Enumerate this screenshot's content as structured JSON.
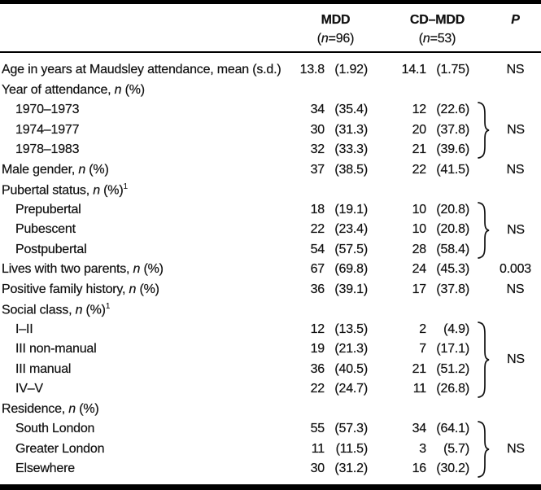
{
  "header": {
    "col_mdd": {
      "title": "MDD",
      "n": "(n=96)"
    },
    "col_cd": {
      "title": "CD–MDD",
      "n": "(n=53)"
    },
    "col_p": "P"
  },
  "table": {
    "rows": [
      {
        "label": "Age in years at Maudsley attendance, mean (s.d.)",
        "mdd_n": "13.8",
        "mdd_pct": "(1.92)",
        "cd_n": "14.1",
        "cd_pct": "(1.75)",
        "p": "NS"
      },
      {
        "label": "Year of attendance, n (%)",
        "italic_n": true,
        "section": true
      },
      {
        "label": "1970–1973",
        "indent": true,
        "mdd_n": "34",
        "mdd_pct": "(35.4)",
        "cd_n": "12",
        "cd_pct": "(22.6)"
      },
      {
        "label": "1974–1977",
        "indent": true,
        "mdd_n": "30",
        "mdd_pct": "(31.3)",
        "cd_n": "20",
        "cd_pct": "(37.8)"
      },
      {
        "label": "1978–1983",
        "indent": true,
        "mdd_n": "32",
        "mdd_pct": "(33.3)",
        "cd_n": "21",
        "cd_pct": "(39.6)"
      },
      {
        "label": "Male gender, n (%)",
        "italic_n": true,
        "mdd_n": "37",
        "mdd_pct": "(38.5)",
        "cd_n": "22",
        "cd_pct": "(41.5)",
        "p": "NS"
      },
      {
        "label": "Pubertal status, n (%)",
        "italic_n": true,
        "sup": "1",
        "section": true
      },
      {
        "label": "Prepubertal",
        "indent": true,
        "mdd_n": "18",
        "mdd_pct": "(19.1)",
        "cd_n": "10",
        "cd_pct": "(20.8)"
      },
      {
        "label": "Pubescent",
        "indent": true,
        "mdd_n": "22",
        "mdd_pct": "(23.4)",
        "cd_n": "10",
        "cd_pct": "(20.8)"
      },
      {
        "label": "Postpubertal",
        "indent": true,
        "mdd_n": "54",
        "mdd_pct": "(57.5)",
        "cd_n": "28",
        "cd_pct": "(58.4)"
      },
      {
        "label": "Lives with two parents, n (%)",
        "italic_n": true,
        "mdd_n": "67",
        "mdd_pct": "(69.8)",
        "cd_n": "24",
        "cd_pct": "(45.3)",
        "p": "0.003"
      },
      {
        "label": "Positive family history, n (%)",
        "italic_n": true,
        "mdd_n": "36",
        "mdd_pct": "(39.1)",
        "cd_n": "17",
        "cd_pct": "(37.8)",
        "p": "NS"
      },
      {
        "label": "Social class, n (%)",
        "italic_n": true,
        "sup": "1",
        "section": true
      },
      {
        "label": "I–II",
        "indent": true,
        "mdd_n": "12",
        "mdd_pct": "(13.5)",
        "cd_n": "2",
        "cd_pct": "(4.9)"
      },
      {
        "label": "III non-manual",
        "indent": true,
        "mdd_n": "19",
        "mdd_pct": "(21.3)",
        "cd_n": "7",
        "cd_pct": "(17.1)"
      },
      {
        "label": "III manual",
        "indent": true,
        "mdd_n": "36",
        "mdd_pct": "(40.5)",
        "cd_n": "21",
        "cd_pct": "(51.2)"
      },
      {
        "label": "IV–V",
        "indent": true,
        "mdd_n": "22",
        "mdd_pct": "(24.7)",
        "cd_n": "11",
        "cd_pct": "(26.8)"
      },
      {
        "label": "Residence, n (%)",
        "italic_n": true,
        "section": true
      },
      {
        "label": "South London",
        "indent": true,
        "mdd_n": "55",
        "mdd_pct": "(57.3)",
        "cd_n": "34",
        "cd_pct": "(64.1)"
      },
      {
        "label": "Greater London",
        "indent": true,
        "mdd_n": "11",
        "mdd_pct": "(11.5)",
        "cd_n": "3",
        "cd_pct": "(5.7)"
      },
      {
        "label": "Elsewhere",
        "indent": true,
        "mdd_n": "30",
        "mdd_pct": "(31.2)",
        "cd_n": "16",
        "cd_pct": "(30.2)"
      }
    ],
    "braces": [
      {
        "from": 2,
        "to": 4,
        "p": "NS"
      },
      {
        "from": 7,
        "to": 9,
        "p": "NS"
      },
      {
        "from": 13,
        "to": 16,
        "p": "NS"
      },
      {
        "from": 18,
        "to": 20,
        "p": "NS"
      }
    ]
  },
  "rules": {
    "color": "#000000",
    "text_color": "#111111"
  }
}
